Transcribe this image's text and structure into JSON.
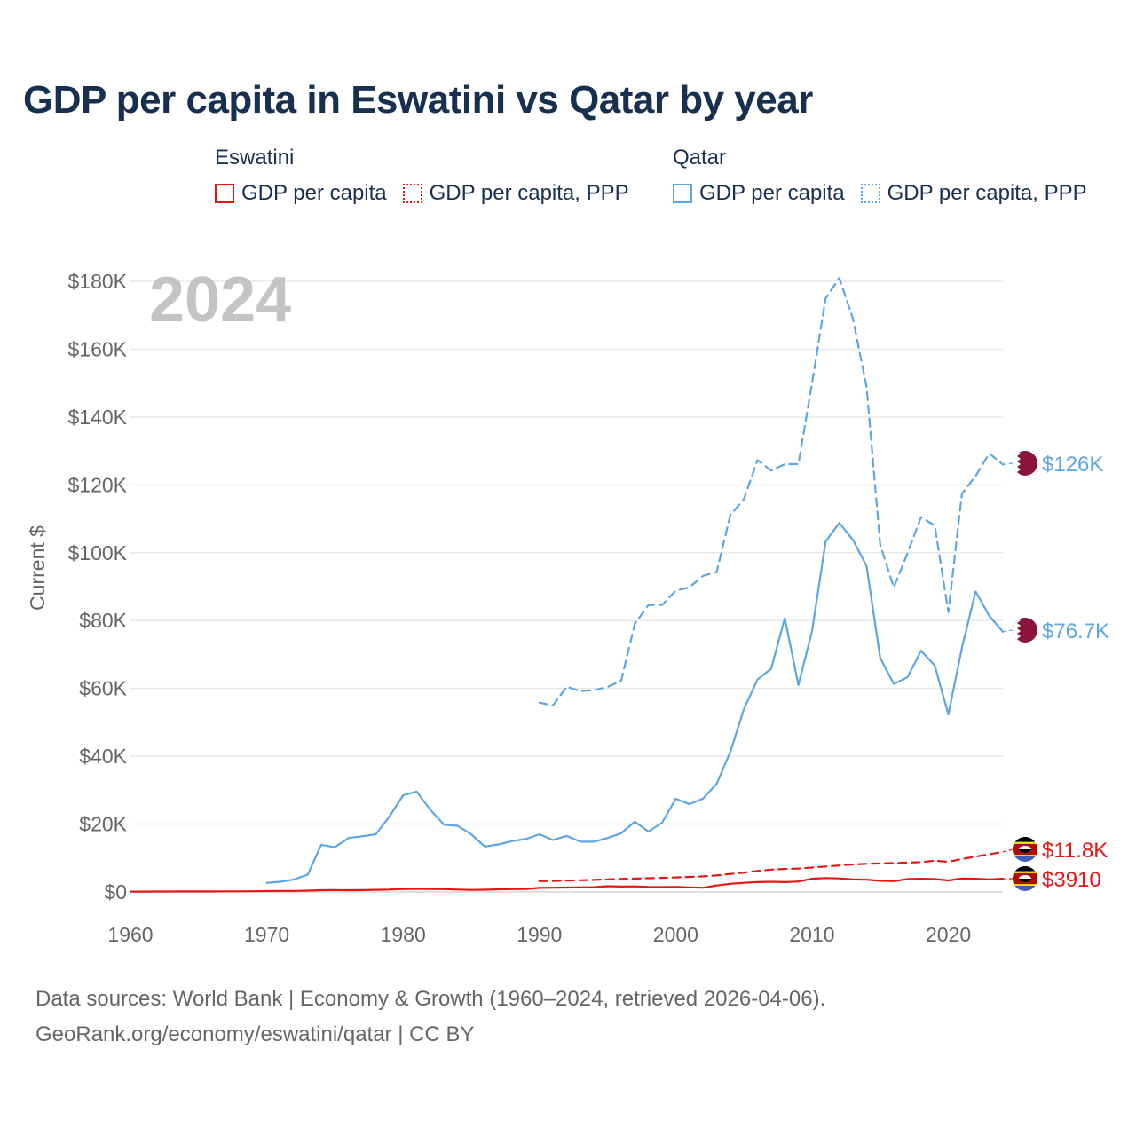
{
  "title": "GDP per capita in Eswatini vs Qatar by year",
  "year_watermark": "2024",
  "legend": {
    "groups": [
      {
        "country": "Eswatini",
        "color": "#e81515",
        "items": [
          {
            "label": "GDP per capita",
            "style": "solid"
          },
          {
            "label": "GDP per capita, PPP",
            "style": "dotted"
          }
        ]
      },
      {
        "country": "Qatar",
        "color": "#5da5e3",
        "items": [
          {
            "label": "GDP per capita",
            "style": "solid"
          },
          {
            "label": "GDP per capita, PPP",
            "style": "dotted"
          }
        ]
      }
    ]
  },
  "chart_data": {
    "type": "line",
    "title": "GDP per capita in Eswatini vs Qatar by year",
    "xlabel": "",
    "ylabel": "Current $",
    "xlim": [
      1960,
      2024
    ],
    "ylim": [
      0,
      180000
    ],
    "xticks": [
      1960,
      1970,
      1980,
      1990,
      2000,
      2010,
      2020
    ],
    "xtick_labels": [
      "1960",
      "1970",
      "1980",
      "1990",
      "2000",
      "2010",
      "2020"
    ],
    "yticks": [
      0,
      20000,
      40000,
      60000,
      80000,
      100000,
      120000,
      140000,
      160000,
      180000
    ],
    "ytick_labels": [
      "$0",
      "$20K",
      "$40K",
      "$60K",
      "$80K",
      "$100K",
      "$120K",
      "$140K",
      "$160K",
      "$180K"
    ],
    "grid": true,
    "series": [
      {
        "name": "Eswatini GDP per capita",
        "country": "Eswatini",
        "color": "#e81515",
        "dash": "solid",
        "end_label": "$3910",
        "x": [
          1960,
          1961,
          1962,
          1963,
          1964,
          1965,
          1966,
          1967,
          1968,
          1969,
          1970,
          1971,
          1972,
          1973,
          1974,
          1975,
          1976,
          1977,
          1978,
          1979,
          1980,
          1981,
          1982,
          1983,
          1984,
          1985,
          1986,
          1987,
          1988,
          1989,
          1990,
          1991,
          1992,
          1993,
          1994,
          1995,
          1996,
          1997,
          1998,
          1999,
          2000,
          2001,
          2002,
          2003,
          2004,
          2005,
          2006,
          2007,
          2008,
          2009,
          2010,
          2011,
          2012,
          2013,
          2014,
          2015,
          2016,
          2017,
          2018,
          2019,
          2020,
          2021,
          2022,
          2023,
          2024
        ],
        "values": [
          100,
          110,
          120,
          130,
          150,
          160,
          170,
          180,
          190,
          200,
          250,
          280,
          320,
          400,
          520,
          560,
          520,
          540,
          620,
          700,
          900,
          920,
          860,
          830,
          700,
          600,
          650,
          780,
          850,
          900,
          1200,
          1250,
          1300,
          1350,
          1400,
          1700,
          1600,
          1650,
          1500,
          1450,
          1500,
          1350,
          1250,
          1900,
          2400,
          2700,
          2900,
          3000,
          2900,
          3100,
          3900,
          4100,
          4000,
          3700,
          3600,
          3300,
          3200,
          3800,
          3900,
          3800,
          3400,
          3950,
          3900,
          3700,
          3910
        ]
      },
      {
        "name": "Eswatini GDP per capita, PPP",
        "country": "Eswatini",
        "color": "#e81515",
        "dash": "dashed",
        "end_label": "$11.8K",
        "x": [
          1990,
          1991,
          1992,
          1993,
          1994,
          1995,
          1996,
          1997,
          1998,
          1999,
          2000,
          2001,
          2002,
          2003,
          2004,
          2005,
          2006,
          2007,
          2008,
          2009,
          2010,
          2011,
          2012,
          2013,
          2014,
          2015,
          2016,
          2017,
          2018,
          2019,
          2020,
          2021,
          2022,
          2023,
          2024
        ],
        "values": [
          3200,
          3250,
          3350,
          3450,
          3550,
          3700,
          3850,
          3950,
          4050,
          4150,
          4300,
          4450,
          4600,
          4900,
          5300,
          5700,
          6200,
          6600,
          6800,
          6900,
          7200,
          7500,
          7800,
          8100,
          8300,
          8400,
          8500,
          8650,
          8800,
          9200,
          8900,
          9700,
          10400,
          11100,
          11800
        ]
      },
      {
        "name": "Qatar GDP per capita",
        "country": "Qatar",
        "color": "#5da5e3",
        "dash": "solid",
        "end_label": "$76.7K",
        "x": [
          1970,
          1971,
          1972,
          1973,
          1974,
          1975,
          1976,
          1977,
          1978,
          1979,
          1980,
          1981,
          1982,
          1983,
          1984,
          1985,
          1986,
          1987,
          1988,
          1989,
          1990,
          1991,
          1992,
          1993,
          1994,
          1995,
          1996,
          1997,
          1998,
          1999,
          2000,
          2001,
          2002,
          2003,
          2004,
          2005,
          2006,
          2007,
          2008,
          2009,
          2010,
          2011,
          2012,
          2013,
          2014,
          2015,
          2016,
          2017,
          2018,
          2019,
          2020,
          2021,
          2022,
          2023,
          2024
        ],
        "values": [
          2700,
          3000,
          3700,
          5100,
          13900,
          13200,
          15900,
          16400,
          17000,
          22200,
          28500,
          29600,
          24200,
          19800,
          19500,
          17000,
          13400,
          14000,
          15000,
          15600,
          17000,
          15300,
          16500,
          14800,
          14800,
          15900,
          17300,
          20700,
          17800,
          20400,
          27500,
          25900,
          27500,
          31900,
          41200,
          53900,
          62600,
          65800,
          80700,
          61000,
          76900,
          103300,
          108800,
          103800,
          96100,
          69000,
          61300,
          63300,
          71100,
          66800,
          52300,
          72000,
          88600,
          81400,
          76700
        ]
      },
      {
        "name": "Qatar GDP per capita, PPP",
        "country": "Qatar",
        "color": "#5da5e3",
        "dash": "dashed",
        "end_label": "$126K",
        "x": [
          1990,
          1991,
          1992,
          1993,
          1994,
          1995,
          1996,
          1997,
          1998,
          1999,
          2000,
          2001,
          2002,
          2003,
          2004,
          2005,
          2006,
          2007,
          2008,
          2009,
          2010,
          2011,
          2012,
          2013,
          2014,
          2015,
          2016,
          2017,
          2018,
          2019,
          2020,
          2021,
          2022,
          2023,
          2024
        ],
        "values": [
          55800,
          55000,
          60500,
          59200,
          59500,
          60400,
          62300,
          79000,
          84600,
          84600,
          88800,
          89800,
          93200,
          94300,
          111000,
          115800,
          127300,
          124200,
          126100,
          126100,
          150000,
          175000,
          181000,
          169000,
          149000,
          102300,
          89800,
          99800,
          110500,
          108000,
          82500,
          117400,
          122600,
          129300,
          126000
        ]
      }
    ]
  },
  "footer": {
    "line1": "Data sources: World Bank | Economy & Growth (1960–2024, retrieved 2026-04-06).",
    "line2": "GeoRank.org/economy/eswatini/qatar | CC BY"
  }
}
